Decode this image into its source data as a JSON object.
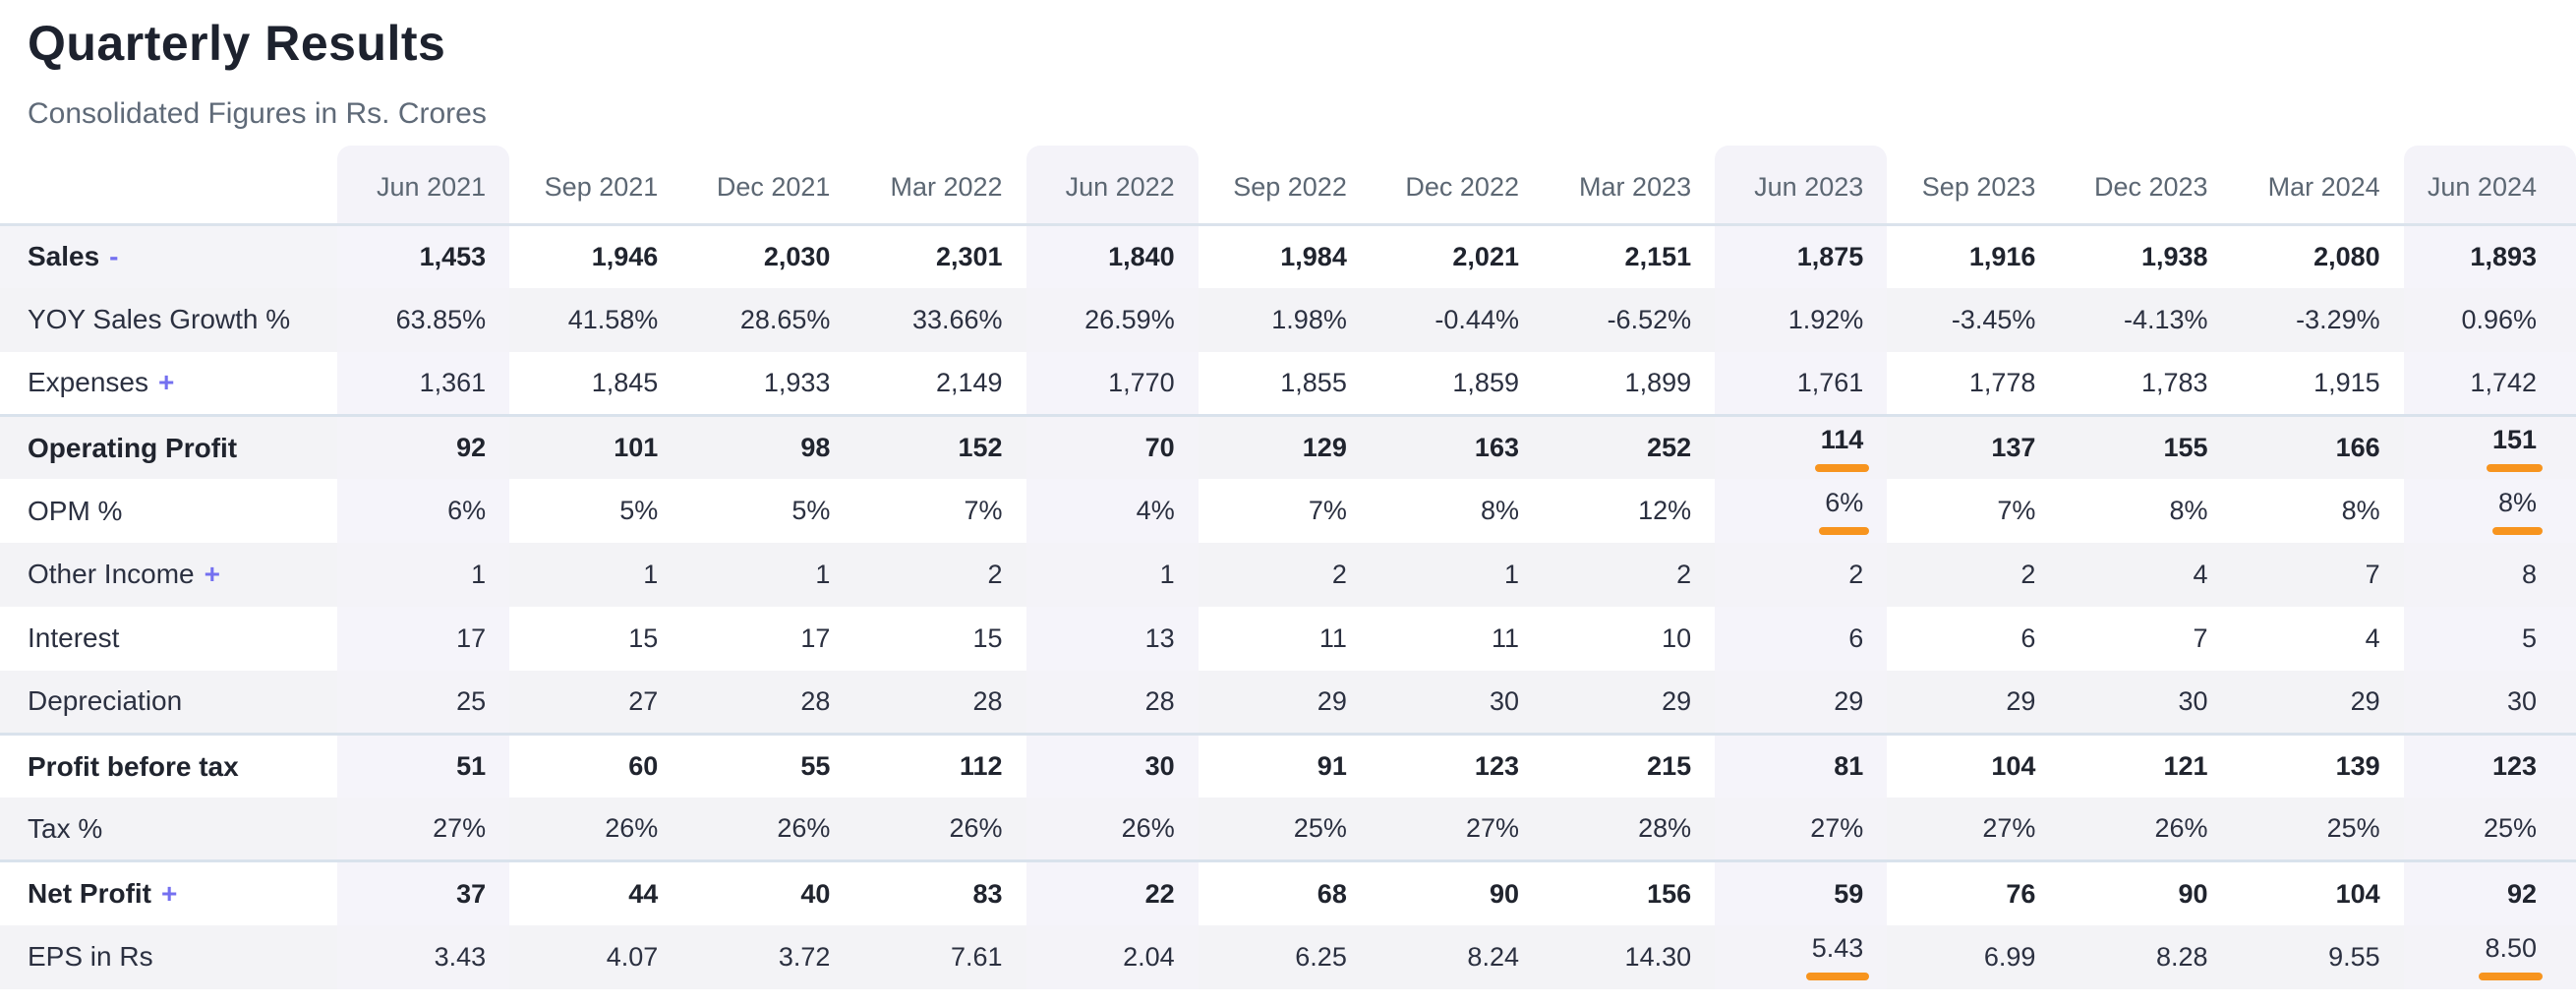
{
  "header": {
    "title": "Quarterly Results",
    "subtitle": "Consolidated Figures in Rs. Crores"
  },
  "table": {
    "columns": [
      "Jun 2021",
      "Sep 2021",
      "Dec 2021",
      "Mar 2022",
      "Jun 2022",
      "Sep 2022",
      "Dec 2022",
      "Mar 2023",
      "Jun 2023",
      "Sep 2023",
      "Dec 2023",
      "Mar 2024",
      "Jun 2024"
    ],
    "highlight_col_indices": [
      0,
      4,
      8,
      12
    ],
    "rows": [
      {
        "label": "Sales",
        "toggle": "-",
        "bold": true,
        "label_highlighted": true,
        "values": [
          "1,453",
          "1,946",
          "2,030",
          "2,301",
          "1,840",
          "1,984",
          "2,021",
          "2,151",
          "1,875",
          "1,916",
          "1,938",
          "2,080",
          "1,893"
        ]
      },
      {
        "label": "YOY Sales Growth %",
        "values": [
          "63.85%",
          "41.58%",
          "28.65%",
          "33.66%",
          "26.59%",
          "1.98%",
          "-0.44%",
          "-6.52%",
          "1.92%",
          "-3.45%",
          "-4.13%",
          "-3.29%",
          "0.96%"
        ]
      },
      {
        "label": "Expenses",
        "toggle": "+",
        "values": [
          "1,361",
          "1,845",
          "1,933",
          "2,149",
          "1,770",
          "1,855",
          "1,859",
          "1,899",
          "1,761",
          "1,778",
          "1,783",
          "1,915",
          "1,742"
        ]
      },
      {
        "label": "Operating Profit",
        "bold": true,
        "section_start": true,
        "underline_cols": [
          8,
          12
        ],
        "values": [
          "92",
          "101",
          "98",
          "152",
          "70",
          "129",
          "163",
          "252",
          "114",
          "137",
          "155",
          "166",
          "151"
        ]
      },
      {
        "label": "OPM %",
        "underline_cols": [
          8,
          12
        ],
        "values": [
          "6%",
          "5%",
          "5%",
          "7%",
          "4%",
          "7%",
          "8%",
          "12%",
          "6%",
          "7%",
          "8%",
          "8%",
          "8%"
        ]
      },
      {
        "label": "Other Income",
        "toggle": "+",
        "values": [
          "1",
          "1",
          "1",
          "2",
          "1",
          "2",
          "1",
          "2",
          "2",
          "2",
          "4",
          "7",
          "8"
        ]
      },
      {
        "label": "Interest",
        "values": [
          "17",
          "15",
          "17",
          "15",
          "13",
          "11",
          "11",
          "10",
          "6",
          "6",
          "7",
          "4",
          "5"
        ]
      },
      {
        "label": "Depreciation",
        "values": [
          "25",
          "27",
          "28",
          "28",
          "28",
          "29",
          "30",
          "29",
          "29",
          "29",
          "30",
          "29",
          "30"
        ]
      },
      {
        "label": "Profit before tax",
        "bold": true,
        "section_start": true,
        "values": [
          "51",
          "60",
          "55",
          "112",
          "30",
          "91",
          "123",
          "215",
          "81",
          "104",
          "121",
          "139",
          "123"
        ]
      },
      {
        "label": "Tax %",
        "values": [
          "27%",
          "26%",
          "26%",
          "26%",
          "26%",
          "25%",
          "27%",
          "28%",
          "27%",
          "27%",
          "26%",
          "25%",
          "25%"
        ]
      },
      {
        "label": "Net Profit",
        "toggle": "+",
        "bold": true,
        "section_start": true,
        "values": [
          "37",
          "44",
          "40",
          "83",
          "22",
          "68",
          "90",
          "156",
          "59",
          "76",
          "90",
          "104",
          "92"
        ]
      },
      {
        "label": "EPS in Rs",
        "underline_cols": [
          8,
          12
        ],
        "values": [
          "3.43",
          "4.07",
          "3.72",
          "7.61",
          "2.04",
          "6.25",
          "8.24",
          "14.30",
          "5.43",
          "6.99",
          "8.28",
          "9.55",
          "8.50"
        ]
      }
    ]
  },
  "colors": {
    "accent_purple": "#7470f0",
    "highlight_orange": "#f7941e",
    "column_highlight": "#f5f4fa",
    "row_stripe": "#f3f3f6",
    "separator": "#d9e2ec"
  }
}
